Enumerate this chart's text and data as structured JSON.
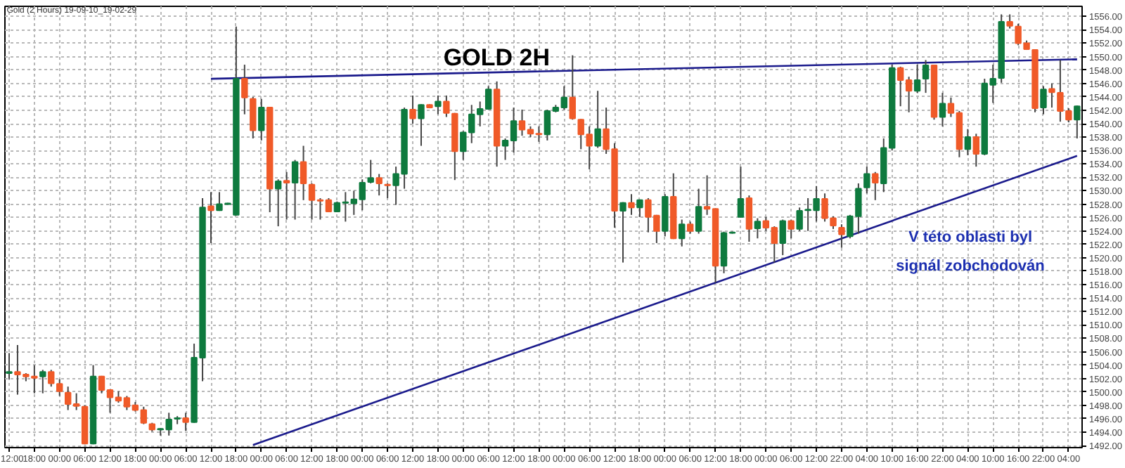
{
  "chart_data": {
    "type": "candlestick",
    "title": "GOLD 2H",
    "subtitle": "Gold (2 Hours) 19-09-10_19-02-29",
    "annotations": [
      "V této oblasti byl",
      "signál zobchodován"
    ],
    "categories": [
      "12:00",
      null,
      null,
      "18:00",
      null,
      null,
      "00:00",
      null,
      null,
      "06:00",
      null,
      null,
      "12:00",
      null,
      null,
      "18:00",
      null,
      null,
      "00:00",
      null,
      null,
      "06:00",
      null,
      null,
      "12:00",
      null,
      null,
      "18:00",
      null,
      null,
      "00:00",
      null,
      null,
      "06:00",
      null,
      null,
      "12:00",
      null,
      null,
      "18:00",
      null,
      null,
      "00:00",
      null,
      null,
      "06:00",
      null,
      null,
      "12:00",
      null,
      null,
      "18:00",
      null,
      null,
      "00:00",
      null,
      null,
      "06:00",
      null,
      null,
      "12:00",
      null,
      null,
      "18:00",
      null,
      null,
      "00:00",
      null,
      null,
      "06:00",
      null,
      null,
      "12:00",
      null,
      null,
      "18:00",
      null,
      null,
      "00:00",
      null,
      null,
      "06:00",
      null,
      null,
      "12:00",
      null,
      null,
      "18:00",
      null,
      null,
      "00:00",
      null,
      null,
      "06:00",
      null,
      null,
      "12:00",
      null,
      null,
      "22:00",
      null,
      null,
      "04:00",
      null,
      null,
      "10:00",
      null,
      null,
      "16:00",
      null,
      null,
      "22:00",
      null,
      null,
      "04:00",
      null,
      null,
      "10:00",
      null,
      null,
      "16:00",
      null,
      null,
      "22:00",
      null,
      null,
      "04:00",
      null
    ],
    "ohlc": [
      [
        1502.8,
        1505.8,
        1501.9,
        1503.0
      ],
      [
        1503.0,
        1507.0,
        1499.6,
        1502.6
      ],
      [
        1502.6,
        1502.8,
        1501.6,
        1502.3
      ],
      [
        1502.3,
        1504.0,
        1499.8,
        1502.1
      ],
      [
        1502.3,
        1503.3,
        1499.8,
        1503.0
      ],
      [
        1503.0,
        1503.3,
        1500.8,
        1501.3
      ],
      [
        1501.2,
        1501.9,
        1499.4,
        1500.1
      ],
      [
        1499.9,
        1500.8,
        1497.3,
        1498.2
      ],
      [
        1498.2,
        1499.8,
        1497.3,
        1497.9
      ],
      [
        1497.8,
        1498.0,
        1492.2,
        1492.3
      ],
      [
        1492.3,
        1504.0,
        1492.2,
        1502.3
      ],
      [
        1502.3,
        1502.4,
        1499.8,
        1500.3
      ],
      [
        1500.3,
        1500.4,
        1496.9,
        1499.2
      ],
      [
        1499.2,
        1500.1,
        1498.4,
        1498.7
      ],
      [
        1499.1,
        1499.4,
        1497.3,
        1497.8
      ],
      [
        1498.0,
        1498.5,
        1497.1,
        1497.3
      ],
      [
        1497.3,
        1497.8,
        1495.2,
        1495.4
      ],
      [
        1495.2,
        1495.4,
        1494.1,
        1494.4
      ],
      [
        1494.4,
        1494.6,
        1493.5,
        1494.5
      ],
      [
        1494.4,
        1496.9,
        1493.5,
        1495.9
      ],
      [
        1496.0,
        1496.4,
        1495.2,
        1496.1
      ],
      [
        1496.1,
        1496.9,
        1494.2,
        1495.5
      ],
      [
        1495.5,
        1507.2,
        1495.4,
        1505.1
      ],
      [
        1505.1,
        1528.9,
        1501.6,
        1527.5
      ],
      [
        1527.7,
        1529.8,
        1522.2,
        1527.1
      ],
      [
        1527.1,
        1529.8,
        1527.0,
        1528.0
      ],
      [
        1528.0,
        1528.2,
        1527.9,
        1528.1
      ],
      [
        1526.4,
        1554.5,
        1526.3,
        1546.7
      ],
      [
        1546.7,
        1548.8,
        1541.4,
        1543.9
      ],
      [
        1543.7,
        1544.0,
        1537.8,
        1539.0
      ],
      [
        1539.0,
        1543.7,
        1537.5,
        1542.4
      ],
      [
        1542.4,
        1542.5,
        1526.8,
        1530.3
      ],
      [
        1530.3,
        1531.7,
        1524.7,
        1531.4
      ],
      [
        1531.5,
        1532.8,
        1525.7,
        1531.2
      ],
      [
        1531.2,
        1534.6,
        1525.7,
        1534.3
      ],
      [
        1534.3,
        1536.7,
        1528.6,
        1531.1
      ],
      [
        1530.9,
        1531.1,
        1525.7,
        1528.6
      ],
      [
        1528.6,
        1528.9,
        1525.7,
        1528.5
      ],
      [
        1528.6,
        1528.9,
        1526.8,
        1526.9
      ],
      [
        1526.9,
        1528.4,
        1526.8,
        1528.2
      ],
      [
        1528.2,
        1529.8,
        1525.4,
        1528.3
      ],
      [
        1528.1,
        1530.0,
        1526.4,
        1528.7
      ],
      [
        1528.7,
        1531.7,
        1527.1,
        1531.2
      ],
      [
        1531.3,
        1534.6,
        1531.1,
        1531.9
      ],
      [
        1531.9,
        1532.5,
        1529.3,
        1531.1
      ],
      [
        1530.9,
        1531.1,
        1528.9,
        1530.8
      ],
      [
        1530.8,
        1533.6,
        1527.9,
        1532.5
      ],
      [
        1532.5,
        1542.4,
        1530.3,
        1542.1
      ],
      [
        1542.1,
        1544.2,
        1540.0,
        1540.8
      ],
      [
        1540.8,
        1542.9,
        1536.7,
        1542.8
      ],
      [
        1542.8,
        1542.9,
        1542.3,
        1542.4
      ],
      [
        1542.6,
        1544.2,
        1541.4,
        1543.3
      ],
      [
        1543.3,
        1544.2,
        1541.0,
        1541.6
      ],
      [
        1541.5,
        1541.6,
        1531.6,
        1535.9
      ],
      [
        1535.9,
        1538.9,
        1534.6,
        1538.7
      ],
      [
        1538.7,
        1542.8,
        1537.1,
        1541.4
      ],
      [
        1541.4,
        1543.3,
        1539.6,
        1542.2
      ],
      [
        1542.2,
        1545.6,
        1542.1,
        1545.1
      ],
      [
        1545.1,
        1546.3,
        1533.6,
        1536.7
      ],
      [
        1536.7,
        1537.8,
        1534.6,
        1537.5
      ],
      [
        1537.5,
        1542.4,
        1535.7,
        1540.4
      ],
      [
        1540.4,
        1542.1,
        1538.2,
        1539.1
      ],
      [
        1539.1,
        1539.6,
        1538.0,
        1538.5
      ],
      [
        1538.5,
        1539.6,
        1537.3,
        1538.4
      ],
      [
        1538.4,
        1542.1,
        1537.5,
        1541.9
      ],
      [
        1541.9,
        1542.8,
        1541.7,
        1542.4
      ],
      [
        1542.4,
        1545.6,
        1542.1,
        1543.9
      ],
      [
        1543.9,
        1550.2,
        1540.6,
        1540.8
      ],
      [
        1540.6,
        1540.7,
        1536.2,
        1538.4
      ],
      [
        1538.4,
        1539.6,
        1533.2,
        1536.7
      ],
      [
        1536.7,
        1544.9,
        1536.4,
        1539.2
      ],
      [
        1539.2,
        1542.4,
        1535.5,
        1536.2
      ],
      [
        1536.2,
        1537.1,
        1524.5,
        1527.0
      ],
      [
        1527.0,
        1528.3,
        1519.3,
        1528.2
      ],
      [
        1528.2,
        1529.5,
        1526.4,
        1527.5
      ],
      [
        1527.5,
        1528.7,
        1526.1,
        1528.6
      ],
      [
        1528.6,
        1528.9,
        1523.8,
        1526.1
      ],
      [
        1526.3,
        1526.4,
        1522.2,
        1524.0
      ],
      [
        1524.0,
        1529.5,
        1523.2,
        1529.1
      ],
      [
        1529.1,
        1532.6,
        1522.8,
        1522.9
      ],
      [
        1522.9,
        1525.7,
        1521.7,
        1525.0
      ],
      [
        1525.0,
        1525.4,
        1523.6,
        1524.0
      ],
      [
        1524.0,
        1530.3,
        1523.6,
        1527.6
      ],
      [
        1527.6,
        1532.3,
        1526.4,
        1527.3
      ],
      [
        1527.3,
        1527.4,
        1516.3,
        1518.8
      ],
      [
        1518.8,
        1523.9,
        1517.7,
        1523.7
      ],
      [
        1523.7,
        1523.9,
        1523.6,
        1523.8
      ],
      [
        1526.1,
        1533.6,
        1526.0,
        1528.8
      ],
      [
        1528.9,
        1529.3,
        1522.4,
        1524.3
      ],
      [
        1524.4,
        1525.9,
        1522.9,
        1525.4
      ],
      [
        1525.5,
        1526.1,
        1524.0,
        1524.5
      ],
      [
        1524.5,
        1524.7,
        1519.3,
        1522.2
      ],
      [
        1522.2,
        1525.7,
        1520.4,
        1525.5
      ],
      [
        1525.5,
        1525.7,
        1522.9,
        1524.3
      ],
      [
        1524.3,
        1527.5,
        1524.0,
        1527.0
      ],
      [
        1527.1,
        1528.9,
        1524.0,
        1527.2
      ],
      [
        1527.1,
        1530.7,
        1525.4,
        1528.8
      ],
      [
        1528.8,
        1529.6,
        1525.4,
        1525.9
      ],
      [
        1525.9,
        1526.2,
        1524.3,
        1524.8
      ],
      [
        1524.5,
        1525.0,
        1521.5,
        1523.5
      ],
      [
        1523.2,
        1526.4,
        1522.9,
        1526.2
      ],
      [
        1526.2,
        1531.1,
        1523.6,
        1530.3
      ],
      [
        1530.5,
        1533.6,
        1529.6,
        1532.5
      ],
      [
        1532.5,
        1532.8,
        1528.6,
        1531.2
      ],
      [
        1531.1,
        1537.8,
        1529.8,
        1536.4
      ],
      [
        1536.4,
        1548.8,
        1536.0,
        1548.3
      ],
      [
        1548.3,
        1548.5,
        1542.6,
        1546.5
      ],
      [
        1546.5,
        1547.0,
        1541.7,
        1544.9
      ],
      [
        1544.9,
        1548.8,
        1544.6,
        1546.5
      ],
      [
        1546.7,
        1549.5,
        1544.6,
        1548.7
      ],
      [
        1548.7,
        1548.8,
        1540.6,
        1541.0
      ],
      [
        1541.0,
        1544.6,
        1539.6,
        1543.0
      ],
      [
        1543.0,
        1543.9,
        1541.0,
        1541.6
      ],
      [
        1541.6,
        1541.9,
        1535.0,
        1536.2
      ],
      [
        1536.2,
        1539.2,
        1535.3,
        1538.0
      ],
      [
        1538.0,
        1538.5,
        1533.6,
        1535.5
      ],
      [
        1535.5,
        1546.7,
        1535.3,
        1546.0
      ],
      [
        1545.8,
        1548.8,
        1543.1,
        1546.7
      ],
      [
        1546.8,
        1556.3,
        1546.1,
        1555.2
      ],
      [
        1555.2,
        1556.3,
        1554.2,
        1554.6
      ],
      [
        1554.5,
        1554.9,
        1551.7,
        1552.0
      ],
      [
        1552.0,
        1552.4,
        1551.0,
        1551.1
      ],
      [
        1551.0,
        1551.1,
        1541.7,
        1542.3
      ],
      [
        1542.4,
        1545.6,
        1541.4,
        1545.1
      ],
      [
        1545.2,
        1546.0,
        1542.4,
        1544.7
      ],
      [
        1544.6,
        1549.5,
        1540.3,
        1541.9
      ],
      [
        1541.9,
        1542.3,
        1540.2,
        1540.6
      ],
      [
        1540.6,
        1542.7,
        1537.8,
        1542.6
      ]
    ],
    "colors": [
      "#0e7a3e",
      "#f05a28",
      "#f05a28",
      "#f05a28",
      "#0e7a3e",
      "#f05a28",
      "#f05a28",
      "#f05a28",
      "#f05a28",
      "#f05a28",
      "#0e7a3e",
      "#f05a28",
      "#f05a28",
      "#f05a28",
      "#f05a28",
      "#f05a28",
      "#f05a28",
      "#f05a28",
      "#0e7a3e",
      "#0e7a3e",
      "#0e7a3e",
      "#f05a28",
      "#0e7a3e",
      "#0e7a3e",
      "#f05a28",
      "#0e7a3e",
      "#0e7a3e",
      "#0e7a3e",
      "#f05a28",
      "#f05a28",
      "#0e7a3e",
      "#f05a28",
      "#0e7a3e",
      "#f05a28",
      "#0e7a3e",
      "#f05a28",
      "#f05a28",
      "#f05a28",
      "#f05a28",
      "#0e7a3e",
      "#0e7a3e",
      "#0e7a3e",
      "#0e7a3e",
      "#0e7a3e",
      "#f05a28",
      "#f05a28",
      "#0e7a3e",
      "#0e7a3e",
      "#f05a28",
      "#0e7a3e",
      "#f05a28",
      "#0e7a3e",
      "#f05a28",
      "#f05a28",
      "#0e7a3e",
      "#0e7a3e",
      "#0e7a3e",
      "#0e7a3e",
      "#f05a28",
      "#0e7a3e",
      "#0e7a3e",
      "#f05a28",
      "#f05a28",
      "#f05a28",
      "#0e7a3e",
      "#0e7a3e",
      "#0e7a3e",
      "#f05a28",
      "#f05a28",
      "#f05a28",
      "#0e7a3e",
      "#f05a28",
      "#f05a28",
      "#0e7a3e",
      "#f05a28",
      "#0e7a3e",
      "#f05a28",
      "#f05a28",
      "#0e7a3e",
      "#f05a28",
      "#0e7a3e",
      "#f05a28",
      "#0e7a3e",
      "#f05a28",
      "#f05a28",
      "#0e7a3e",
      "#0e7a3e",
      "#0e7a3e",
      "#f05a28",
      "#0e7a3e",
      "#f05a28",
      "#f05a28",
      "#0e7a3e",
      "#f05a28",
      "#0e7a3e",
      "#0e7a3e",
      "#0e7a3e",
      "#f05a28",
      "#f05a28",
      "#f05a28",
      "#0e7a3e",
      "#0e7a3e",
      "#0e7a3e",
      "#f05a28",
      "#0e7a3e",
      "#0e7a3e",
      "#f05a28",
      "#f05a28",
      "#0e7a3e",
      "#0e7a3e",
      "#f05a28",
      "#0e7a3e",
      "#f05a28",
      "#f05a28",
      "#0e7a3e",
      "#f05a28",
      "#0e7a3e",
      "#0e7a3e",
      "#0e7a3e",
      "#f05a28",
      "#f05a28",
      "#f05a28",
      "#f05a28",
      "#0e7a3e",
      "#f05a28",
      "#f05a28",
      "#f05a28",
      "#0e7a3e"
    ],
    "series": [
      {
        "type": "line",
        "color": "#1a1a8c",
        "values": [
          null,
          null,
          null,
          null,
          null,
          null,
          null,
          null,
          null,
          null,
          null,
          null,
          null,
          null,
          null,
          null,
          null,
          null,
          null,
          null,
          null,
          null,
          null,
          null,
          1546.7,
          null,
          null,
          null,
          null,
          null,
          null,
          null,
          null,
          null,
          null,
          null,
          null,
          null,
          null,
          null,
          null,
          null,
          null,
          null,
          null,
          null,
          null,
          null,
          null,
          null,
          null,
          null,
          null,
          null,
          null,
          null,
          null,
          null,
          null,
          null,
          null,
          null,
          null,
          null,
          null,
          null,
          null,
          null,
          null,
          null,
          null,
          null,
          null,
          null,
          null,
          null,
          null,
          null,
          null,
          null,
          null,
          null,
          null,
          null,
          null,
          null,
          null,
          null,
          null,
          null,
          null,
          null,
          null,
          null,
          null,
          null,
          null,
          null,
          null,
          null,
          null,
          null,
          null,
          null,
          null,
          null,
          null,
          null,
          null,
          null,
          null,
          null,
          null,
          null,
          null,
          null,
          null,
          null,
          null,
          null,
          null,
          null,
          null,
          null,
          null,
          null,
          null,
          1549.6
        ]
      },
      {
        "type": "line",
        "color": "#1a1a8c",
        "values": [
          null,
          null,
          null,
          null,
          null,
          null,
          null,
          null,
          null,
          null,
          null,
          null,
          null,
          null,
          null,
          null,
          null,
          null,
          null,
          null,
          null,
          null,
          null,
          null,
          null,
          null,
          null,
          null,
          null,
          1492.1,
          null,
          null,
          null,
          null,
          null,
          null,
          null,
          null,
          null,
          null,
          null,
          null,
          null,
          null,
          null,
          null,
          null,
          null,
          null,
          null,
          null,
          null,
          null,
          null,
          null,
          null,
          null,
          null,
          null,
          null,
          null,
          null,
          null,
          null,
          null,
          null,
          null,
          null,
          null,
          null,
          null,
          null,
          null,
          null,
          null,
          null,
          null,
          null,
          null,
          null,
          null,
          null,
          null,
          null,
          null,
          null,
          null,
          null,
          null,
          null,
          null,
          null,
          null,
          null,
          null,
          null,
          null,
          null,
          null,
          null,
          null,
          null,
          null,
          null,
          null,
          null,
          null,
          null,
          null,
          null,
          null,
          null,
          null,
          null,
          null,
          null,
          null,
          null,
          null,
          null,
          null,
          null,
          null,
          null,
          null,
          null,
          null,
          1535.2
        ]
      }
    ],
    "ylim": [
      1491.7,
      1557.5
    ],
    "yticks": [
      {
        "value": 1492,
        "label": "1492.00"
      },
      {
        "value": 1494,
        "label": "1494.00"
      },
      {
        "value": 1496,
        "label": "1496.00"
      },
      {
        "value": 1498,
        "label": "1498.00"
      },
      {
        "value": 1500,
        "label": "1500.00"
      },
      {
        "value": 1502,
        "label": "1502.00"
      },
      {
        "value": 1504,
        "label": "1504.00"
      },
      {
        "value": 1506,
        "label": "1506.00"
      },
      {
        "value": 1508,
        "label": "1508.00"
      },
      {
        "value": 1510,
        "label": "1510.00"
      },
      {
        "value": 1512,
        "label": "1512.00"
      },
      {
        "value": 1514,
        "label": "1514.00"
      },
      {
        "value": 1516,
        "label": "1516.00"
      },
      {
        "value": 1518,
        "label": "1518.00"
      },
      {
        "value": 1520,
        "label": "1520.00"
      },
      {
        "value": 1522,
        "label": "1522.00"
      },
      {
        "value": 1524,
        "label": "1524.00"
      },
      {
        "value": 1526,
        "label": "1526.00"
      },
      {
        "value": 1528,
        "label": "1528.00"
      },
      {
        "value": 1530,
        "label": "1530.00"
      },
      {
        "value": 1532,
        "label": "1532.00"
      },
      {
        "value": 1534,
        "label": "1534.00"
      },
      {
        "value": 1536,
        "label": "1536.00"
      },
      {
        "value": 1538,
        "label": "1538.00"
      },
      {
        "value": 1540,
        "label": "1540.00"
      },
      {
        "value": 1542,
        "label": "1542.00"
      },
      {
        "value": 1544,
        "label": "1544.00"
      },
      {
        "value": 1546,
        "label": "1546.00"
      },
      {
        "value": 1548,
        "label": "1548.00"
      },
      {
        "value": 1550,
        "label": "1550.00"
      },
      {
        "value": 1552,
        "label": "1552.00"
      },
      {
        "value": 1554,
        "label": "1554.00"
      },
      {
        "value": 1556,
        "label": "1556.00"
      }
    ],
    "grid": true
  }
}
